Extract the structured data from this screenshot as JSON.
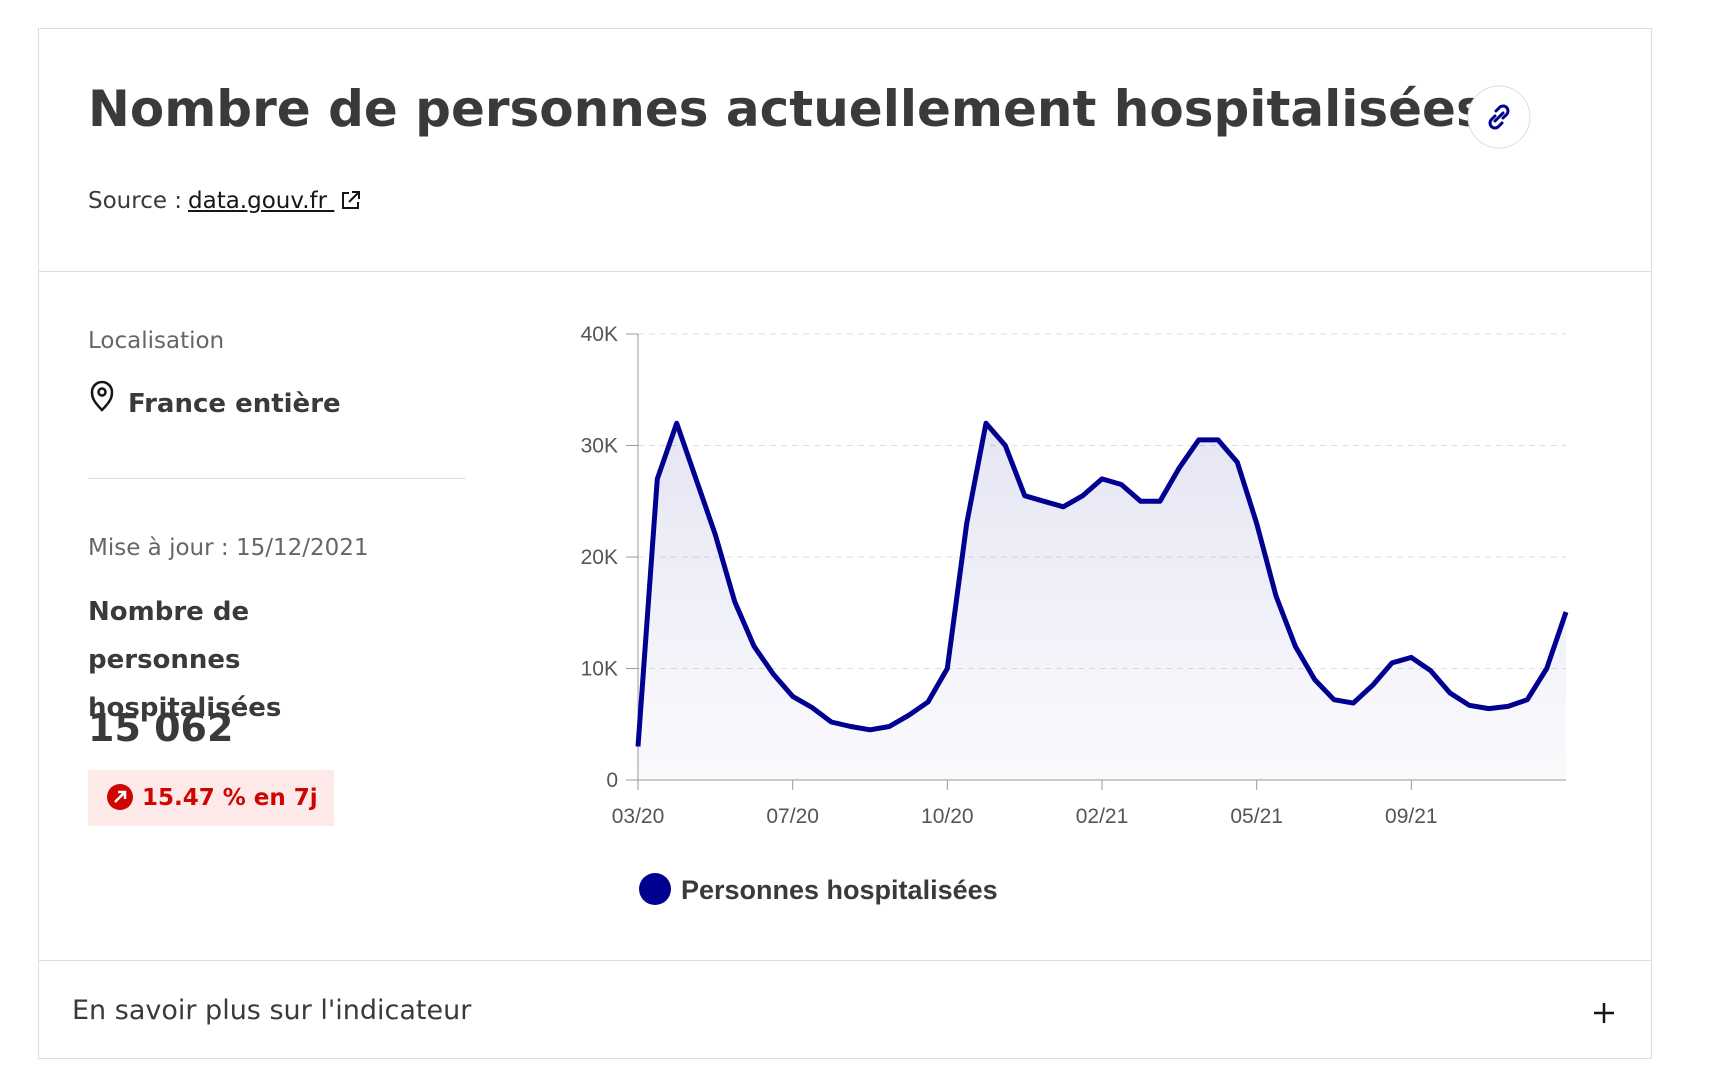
{
  "header": {
    "title": "Nombre de personnes actuellement hospitalisées",
    "source_label": "Source :",
    "source_link": "data.gouv.fr"
  },
  "sidebar": {
    "location_label": "Localisation",
    "location": "France entière",
    "updated": "Mise à jour : 15/12/2021",
    "indicator": "Nombre de personnes hospitalisées",
    "value": "15 062",
    "change": "15.47 % en 7j"
  },
  "footer": {
    "more": "En savoir plus sur l'indicateur"
  },
  "chart_data": {
    "type": "line",
    "categories": [
      "03/20",
      null,
      null,
      null,
      null,
      null,
      null,
      null,
      "07/20",
      null,
      null,
      null,
      null,
      null,
      null,
      null,
      "10/20",
      null,
      null,
      null,
      null,
      null,
      null,
      null,
      "02/21",
      null,
      null,
      null,
      null,
      null,
      null,
      null,
      "05/21",
      null,
      null,
      null,
      null,
      null,
      null,
      null,
      "09/21",
      null,
      null,
      null,
      null,
      null,
      null,
      null,
      null
    ],
    "series": [
      {
        "name": "Personnes hospitalisées",
        "color": "#000091",
        "values": [
          3000,
          27000,
          32000,
          27000,
          22000,
          16000,
          12000,
          9500,
          7500,
          6500,
          5200,
          4800,
          4500,
          4800,
          5800,
          7000,
          10000,
          23000,
          32000,
          30000,
          25500,
          25000,
          24500,
          25500,
          27000,
          26500,
          25000,
          25000,
          28000,
          30500,
          30500,
          28500,
          23000,
          16500,
          12000,
          9000,
          7200,
          6900,
          8500,
          10500,
          11000,
          9800,
          7800,
          6700,
          6400,
          6600,
          7200,
          10000,
          15062
        ]
      }
    ],
    "ylim": [
      0,
      40000
    ],
    "yticks": [
      0,
      {
        "value": 10000,
        "label": "10K"
      },
      {
        "value": 20000,
        "label": "20K"
      },
      {
        "value": 30000,
        "label": "30K"
      },
      {
        "value": 40000,
        "label": "40K"
      }
    ],
    "grid": true,
    "legend": "bottom"
  }
}
